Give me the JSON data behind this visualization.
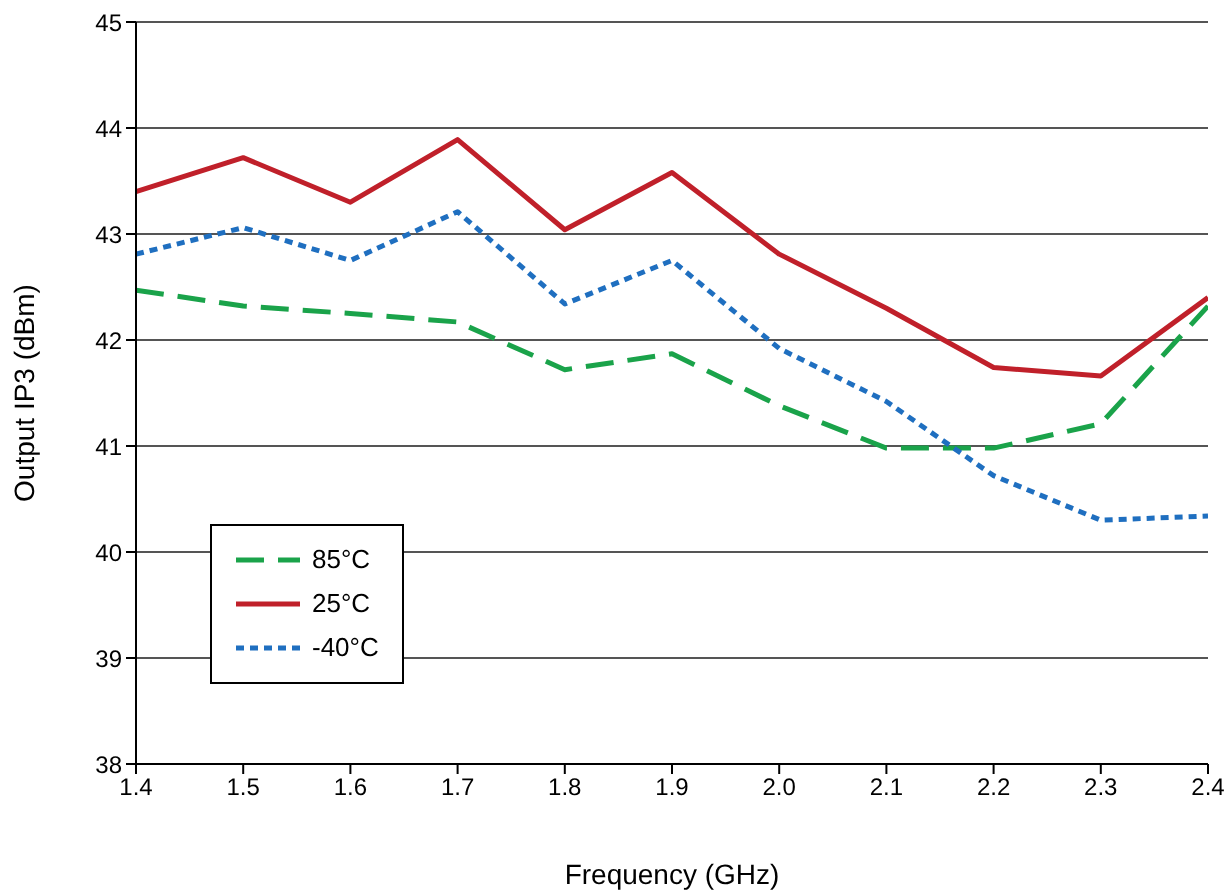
{
  "chart_data": {
    "type": "line",
    "xlabel": "Frequency (GHz)",
    "ylabel": "Output IP3 (dBm)",
    "x": [
      1.4,
      1.5,
      1.6,
      1.7,
      1.8,
      1.9,
      2.0,
      2.1,
      2.2,
      2.3,
      2.4
    ],
    "series": [
      {
        "name": "85°C",
        "color": "#1aa34a",
        "line_style": "dashed",
        "values": [
          42.47,
          42.32,
          42.25,
          42.17,
          41.72,
          41.87,
          41.38,
          40.98,
          40.98,
          41.21,
          42.32
        ]
      },
      {
        "name": "25°C",
        "color": "#c0202a",
        "line_style": "solid",
        "values": [
          43.4,
          43.72,
          43.3,
          43.89,
          43.04,
          43.58,
          42.81,
          42.3,
          41.74,
          41.66,
          42.4
        ]
      },
      {
        "name": "-40°C",
        "color": "#1f6fc0",
        "line_style": "dotted",
        "values": [
          42.81,
          43.06,
          42.75,
          43.21,
          42.34,
          42.75,
          41.92,
          41.42,
          40.72,
          40.3,
          40.34
        ]
      }
    ],
    "xlim": [
      1.4,
      2.4
    ],
    "xticks": [
      1.4,
      1.5,
      1.6,
      1.7,
      1.8,
      1.9,
      {
        "value": 2,
        "label": "2.0"
      },
      2.1,
      2.2,
      2.3,
      2.4
    ],
    "ylim": [
      38,
      45
    ],
    "yticks": [
      38,
      39,
      40,
      41,
      42,
      43,
      44,
      45
    ],
    "grid": "y",
    "legend": "bottom left",
    "marker": "none"
  }
}
